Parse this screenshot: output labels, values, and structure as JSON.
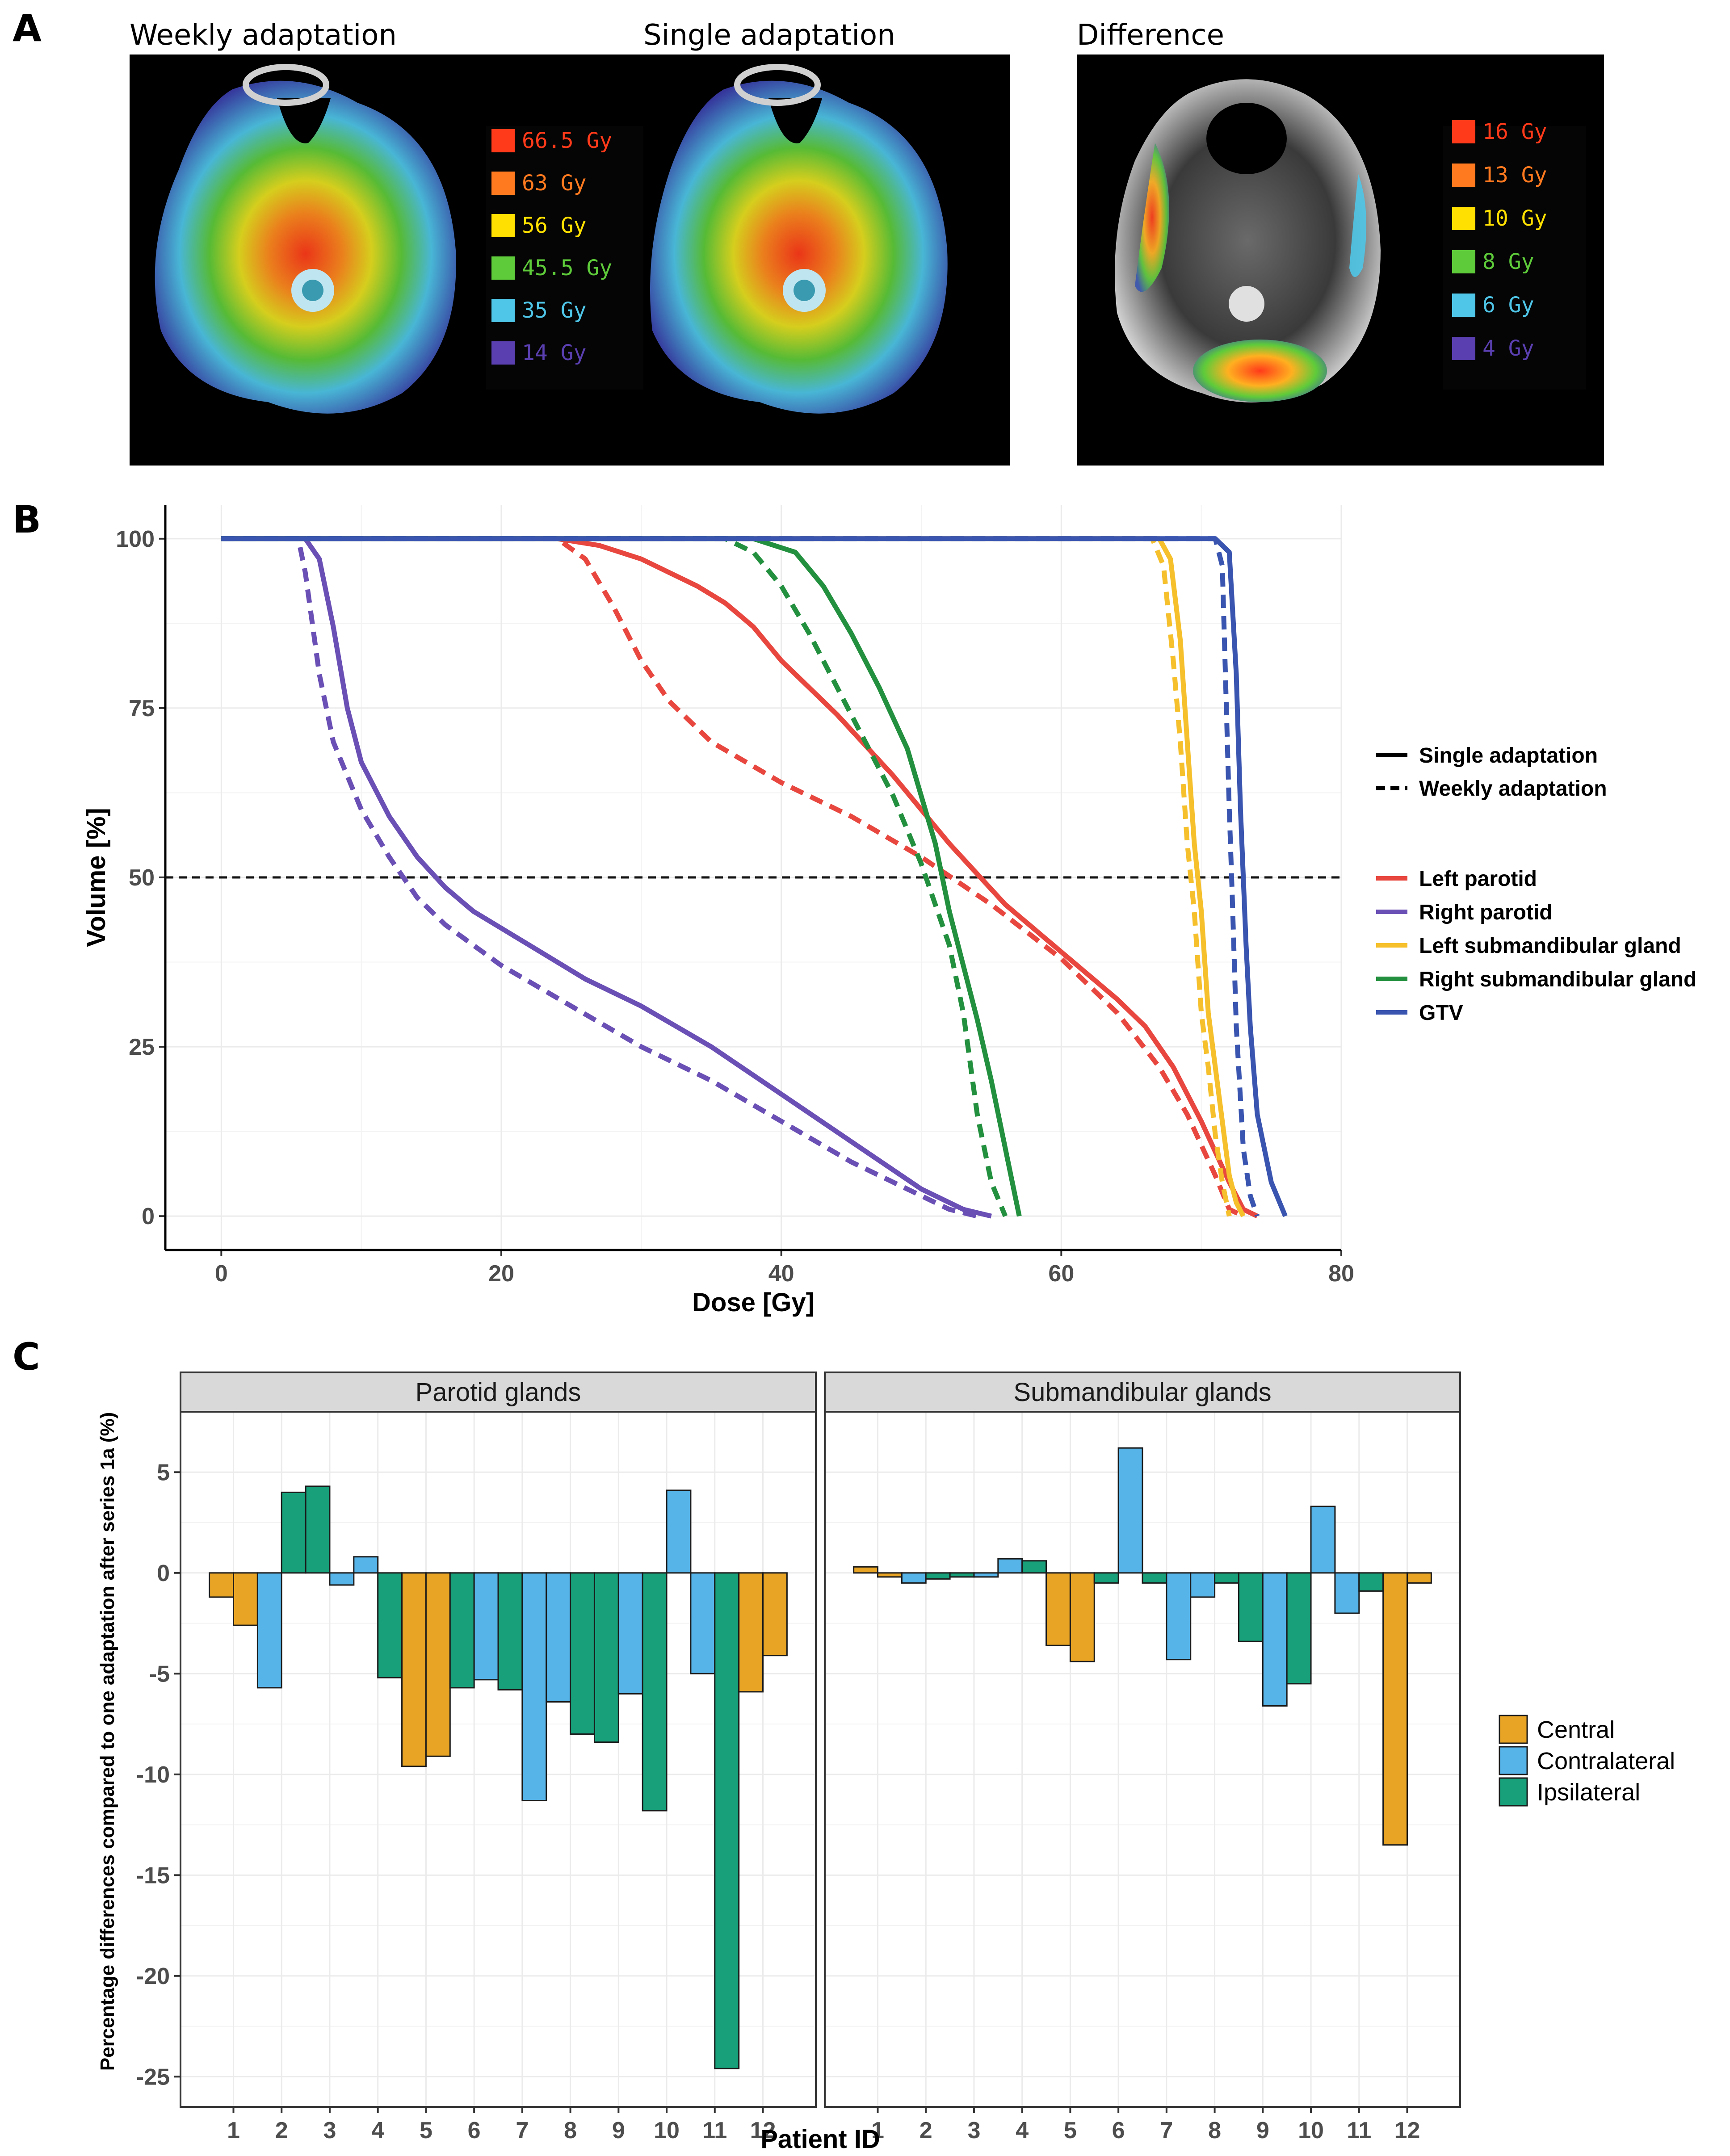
{
  "panels": {
    "a": {
      "letter": "A",
      "images": [
        {
          "title": "Weekly adaptation",
          "legend": [
            {
              "label": "66.5 Gy",
              "color": "#ff3a1a"
            },
            {
              "label": "63 Gy",
              "color": "#ff7a1f"
            },
            {
              "label": "56 Gy",
              "color": "#ffe000"
            },
            {
              "label": "45.5 Gy",
              "color": "#5ecb3a"
            },
            {
              "label": "35 Gy",
              "color": "#4fc6e8"
            },
            {
              "label": "14 Gy",
              "color": "#5a3fb0"
            }
          ]
        },
        {
          "title": "Single adaptation",
          "legend": []
        },
        {
          "title": "Difference",
          "legend": [
            {
              "label": "16 Gy",
              "color": "#ff3a1a"
            },
            {
              "label": "13 Gy",
              "color": "#ff7a1f"
            },
            {
              "label": "10 Gy",
              "color": "#ffe000"
            },
            {
              "label": "8 Gy",
              "color": "#5ecb3a"
            },
            {
              "label": "6 Gy",
              "color": "#4fc6e8"
            },
            {
              "label": "4 Gy",
              "color": "#5a3fb0"
            }
          ]
        }
      ]
    },
    "b": {
      "letter": "B"
    },
    "c": {
      "letter": "C"
    }
  },
  "chart_data": [
    {
      "type": "line",
      "panel": "B",
      "xlabel": "Dose [Gy]",
      "ylabel": "Volume [%]",
      "xlim": [
        -4,
        80
      ],
      "ylim": [
        -5,
        105
      ],
      "xticks": [
        0,
        20,
        40,
        60,
        80
      ],
      "yticks": [
        0,
        25,
        50,
        75,
        100
      ],
      "reference_line": {
        "y": 50,
        "style": "dashed"
      },
      "linetype_legend": [
        {
          "label": "Single adaptation",
          "dash": "solid"
        },
        {
          "label": "Weekly adaptation",
          "dash": "dashed"
        }
      ],
      "series": [
        {
          "name": "Left parotid",
          "color": "#e8473f",
          "single": [
            [
              0,
              100
            ],
            [
              24,
              100
            ],
            [
              27,
              99
            ],
            [
              30,
              97
            ],
            [
              34,
              93
            ],
            [
              36,
              90.5
            ],
            [
              38,
              87
            ],
            [
              40,
              82
            ],
            [
              44,
              74
            ],
            [
              48,
              65
            ],
            [
              52,
              55
            ],
            [
              56,
              46
            ],
            [
              60,
              39
            ],
            [
              64,
              32
            ],
            [
              66,
              28
            ],
            [
              68,
              22
            ],
            [
              70,
              14
            ],
            [
              72,
              5
            ],
            [
              73,
              1
            ],
            [
              74,
              0
            ]
          ],
          "weekly": [
            [
              0,
              100
            ],
            [
              24,
              100
            ],
            [
              26,
              97
            ],
            [
              28,
              90
            ],
            [
              30,
              82
            ],
            [
              32,
              76
            ],
            [
              35,
              70
            ],
            [
              40,
              64
            ],
            [
              45,
              59
            ],
            [
              50,
              53
            ],
            [
              55,
              46
            ],
            [
              60,
              38
            ],
            [
              64,
              30
            ],
            [
              67,
              22
            ],
            [
              69,
              15
            ],
            [
              71,
              6
            ],
            [
              72,
              1
            ],
            [
              73,
              0
            ]
          ]
        },
        {
          "name": "Right parotid",
          "color": "#6a4fb5",
          "single": [
            [
              0,
              100
            ],
            [
              6,
              100
            ],
            [
              7,
              97
            ],
            [
              8,
              87
            ],
            [
              9,
              75
            ],
            [
              10,
              67
            ],
            [
              12,
              59
            ],
            [
              14,
              53
            ],
            [
              16,
              48.5
            ],
            [
              18,
              45
            ],
            [
              22,
              40
            ],
            [
              26,
              35
            ],
            [
              30,
              31
            ],
            [
              35,
              25
            ],
            [
              40,
              18
            ],
            [
              45,
              11
            ],
            [
              50,
              4
            ],
            [
              53,
              1
            ],
            [
              55,
              0
            ]
          ],
          "weekly": [
            [
              0,
              100
            ],
            [
              5.5,
              100
            ],
            [
              6,
              95
            ],
            [
              7,
              80
            ],
            [
              8,
              70
            ],
            [
              10,
              60
            ],
            [
              12,
              53
            ],
            [
              14,
              47
            ],
            [
              16,
              43
            ],
            [
              20,
              37
            ],
            [
              25,
              31
            ],
            [
              30,
              25
            ],
            [
              35,
              20
            ],
            [
              40,
              14
            ],
            [
              45,
              8
            ],
            [
              50,
              3
            ],
            [
              52,
              1
            ],
            [
              54,
              0
            ]
          ]
        },
        {
          "name": "Left submandibular gland",
          "color": "#f5c02c",
          "single": [
            [
              0,
              100
            ],
            [
              67,
              100
            ],
            [
              67.8,
              97
            ],
            [
              68.5,
              85
            ],
            [
              69,
              70
            ],
            [
              69.5,
              55
            ],
            [
              70,
              45
            ],
            [
              70.5,
              30
            ],
            [
              71,
              22
            ],
            [
              71.5,
              14
            ],
            [
              72,
              6
            ],
            [
              72.5,
              2
            ],
            [
              73,
              0
            ]
          ],
          "weekly": [
            [
              0,
              100
            ],
            [
              66.5,
              100
            ],
            [
              67.3,
              96
            ],
            [
              68,
              82
            ],
            [
              68.5,
              70
            ],
            [
              69,
              55
            ],
            [
              69.5,
              45
            ],
            [
              70,
              30
            ],
            [
              70.5,
              22
            ],
            [
              71,
              12
            ],
            [
              71.5,
              5
            ],
            [
              72,
              0
            ]
          ]
        },
        {
          "name": "Right submandibular gland",
          "color": "#23903f",
          "single": [
            [
              0,
              100
            ],
            [
              38,
              100
            ],
            [
              41,
              98
            ],
            [
              43,
              93
            ],
            [
              45,
              86
            ],
            [
              47,
              78
            ],
            [
              49,
              69
            ],
            [
              50,
              62
            ],
            [
              51,
              55
            ],
            [
              51.5,
              50
            ],
            [
              52,
              45
            ],
            [
              53,
              37
            ],
            [
              54,
              29
            ],
            [
              55,
              20
            ],
            [
              56,
              10
            ],
            [
              57,
              0
            ]
          ],
          "weekly": [
            [
              0,
              100
            ],
            [
              36,
              100
            ],
            [
              38,
              98
            ],
            [
              40,
              93
            ],
            [
              42,
              86
            ],
            [
              44,
              78
            ],
            [
              46,
              70
            ],
            [
              48,
              62
            ],
            [
              50,
              52
            ],
            [
              51,
              46
            ],
            [
              52,
              40
            ],
            [
              53,
              30
            ],
            [
              54,
              15
            ],
            [
              55,
              5
            ],
            [
              56,
              0
            ]
          ]
        },
        {
          "name": "GTV",
          "color": "#3a55b0",
          "single": [
            [
              0,
              100
            ],
            [
              71,
              100
            ],
            [
              72,
              98
            ],
            [
              72.5,
              80
            ],
            [
              72.8,
              60
            ],
            [
              73,
              50
            ],
            [
              73.2,
              40
            ],
            [
              73.5,
              28
            ],
            [
              74,
              15
            ],
            [
              75,
              5
            ],
            [
              76,
              0
            ]
          ],
          "weekly": [
            [
              0,
              100
            ],
            [
              71,
              100
            ],
            [
              71.5,
              96
            ],
            [
              72,
              60
            ],
            [
              72.2,
              48
            ],
            [
              72.5,
              28
            ],
            [
              73,
              10
            ],
            [
              73.5,
              3
            ],
            [
              74,
              0
            ]
          ]
        }
      ]
    },
    {
      "type": "bar",
      "panel": "C",
      "facets": [
        "Parotid glands",
        "Submandibular glands"
      ],
      "xlabel": "Patient ID",
      "ylabel": "Percentage differences compared to one adaptation after series 1a (%)",
      "categories": [
        "1",
        "2",
        "3",
        "4",
        "5",
        "6",
        "7",
        "8",
        "9",
        "10",
        "11",
        "12"
      ],
      "ylim": [
        -26.5,
        8
      ],
      "yticks": [
        -25,
        -20,
        -15,
        -10,
        -5,
        0,
        5
      ],
      "legend": [
        {
          "name": "Central",
          "color": "#e8a425"
        },
        {
          "name": "Contralateral",
          "color": "#56b4e9"
        },
        {
          "name": "Ipsilateral",
          "color": "#17a07a"
        }
      ],
      "bars": {
        "Parotid glands": [
          [
            {
              "group": "Central",
              "value": -1.2
            },
            {
              "group": "Central",
              "value": -2.6
            }
          ],
          [
            {
              "group": "Contralateral",
              "value": -5.7
            },
            {
              "group": "Ipsilateral",
              "value": 4.0
            }
          ],
          [
            {
              "group": "Ipsilateral",
              "value": 4.3
            },
            {
              "group": "Contralateral",
              "value": -0.6
            }
          ],
          [
            {
              "group": "Contralateral",
              "value": 0.8
            },
            {
              "group": "Ipsilateral",
              "value": -5.2
            }
          ],
          [
            {
              "group": "Central",
              "value": -9.6
            },
            {
              "group": "Central",
              "value": -9.1
            }
          ],
          [
            {
              "group": "Ipsilateral",
              "value": -5.7
            },
            {
              "group": "Contralateral",
              "value": -5.3
            }
          ],
          [
            {
              "group": "Ipsilateral",
              "value": -5.8
            },
            {
              "group": "Contralateral",
              "value": -11.3
            }
          ],
          [
            {
              "group": "Contralateral",
              "value": -6.4
            },
            {
              "group": "Ipsilateral",
              "value": -8.0
            }
          ],
          [
            {
              "group": "Ipsilateral",
              "value": -8.4
            },
            {
              "group": "Contralateral",
              "value": -6.0
            }
          ],
          [
            {
              "group": "Ipsilateral",
              "value": -11.8
            },
            {
              "group": "Contralateral",
              "value": 4.1
            }
          ],
          [
            {
              "group": "Contralateral",
              "value": -5.0
            },
            {
              "group": "Ipsilateral",
              "value": -24.6
            }
          ],
          [
            {
              "group": "Central",
              "value": -5.9
            },
            {
              "group": "Central",
              "value": -4.1
            }
          ]
        ],
        "Submandibular glands": [
          [
            {
              "group": "Central",
              "value": 0.3
            },
            {
              "group": "Central",
              "value": -0.2
            }
          ],
          [
            {
              "group": "Contralateral",
              "value": -0.5
            },
            {
              "group": "Ipsilateral",
              "value": -0.3
            }
          ],
          [
            {
              "group": "Ipsilateral",
              "value": -0.2
            },
            {
              "group": "Contralateral",
              "value": -0.2
            }
          ],
          [
            {
              "group": "Contralateral",
              "value": 0.7
            },
            {
              "group": "Ipsilateral",
              "value": 0.6
            }
          ],
          [
            {
              "group": "Central",
              "value": -3.6
            },
            {
              "group": "Central",
              "value": -4.4
            }
          ],
          [
            {
              "group": "Ipsilateral",
              "value": -0.5
            },
            {
              "group": "Contralateral",
              "value": 6.2
            }
          ],
          [
            {
              "group": "Ipsilateral",
              "value": -0.5
            },
            {
              "group": "Contralateral",
              "value": -4.3
            }
          ],
          [
            {
              "group": "Contralateral",
              "value": -1.2
            },
            {
              "group": "Ipsilateral",
              "value": -0.5
            }
          ],
          [
            {
              "group": "Ipsilateral",
              "value": -3.4
            },
            {
              "group": "Contralateral",
              "value": -6.6
            }
          ],
          [
            {
              "group": "Ipsilateral",
              "value": -5.5
            },
            {
              "group": "Contralateral",
              "value": 3.3
            }
          ],
          [
            {
              "group": "Contralateral",
              "value": -2.0
            },
            {
              "group": "Ipsilateral",
              "value": -0.9
            }
          ],
          [
            {
              "group": "Central",
              "value": -13.5
            },
            {
              "group": "Central",
              "value": -0.5
            }
          ]
        ]
      }
    }
  ]
}
